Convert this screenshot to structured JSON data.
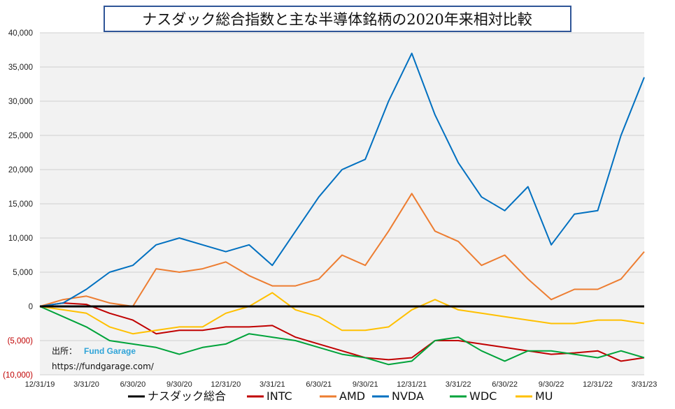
{
  "chart_data": {
    "type": "line",
    "title": "ナスダック総合指数と主な半導体銘柄の2020年来相対比較",
    "xlabel": "",
    "ylabel": "",
    "ylim": [
      -10000,
      40000
    ],
    "y_ticks": [
      40000,
      35000,
      30000,
      25000,
      20000,
      15000,
      10000,
      5000,
      0,
      -5000,
      -10000
    ],
    "y_tick_labels": [
      "40,000",
      "35,000",
      "30,000",
      "25,000",
      "20,000",
      "15,000",
      "10,000",
      "5,000",
      "0",
      "(5,000)",
      "(10,000)"
    ],
    "x_tick_labels": [
      "12/31/19",
      "3/31/20",
      "6/30/20",
      "9/30/20",
      "12/31/20",
      "3/31/21",
      "6/30/21",
      "9/30/21",
      "12/31/21",
      "3/31/22",
      "6/30/22",
      "9/30/22",
      "12/31/22",
      "3/31/23"
    ],
    "grid": "horizontal",
    "legend_position": "bottom",
    "x": [
      "12/31/19",
      "2/15/20",
      "3/31/20",
      "5/15/20",
      "6/30/20",
      "8/15/20",
      "9/30/20",
      "11/15/20",
      "12/31/20",
      "2/15/21",
      "3/31/21",
      "5/15/21",
      "6/30/21",
      "8/15/21",
      "9/30/21",
      "11/15/21",
      "12/31/21",
      "2/15/22",
      "3/31/22",
      "5/15/22",
      "6/30/22",
      "8/15/22",
      "9/30/22",
      "11/15/22",
      "12/31/22",
      "2/15/23",
      "3/31/23"
    ],
    "series": [
      {
        "name": "ナスダック総合",
        "color": "#000000",
        "values": [
          0,
          0,
          0,
          0,
          0,
          0,
          0,
          0,
          0,
          0,
          0,
          0,
          0,
          0,
          0,
          0,
          0,
          0,
          0,
          0,
          0,
          0,
          0,
          0,
          0,
          0,
          0
        ]
      },
      {
        "name": "INTC",
        "color": "#c00000",
        "values": [
          0,
          500,
          300,
          -1000,
          -2000,
          -4000,
          -3500,
          -3500,
          -3000,
          -3000,
          -2800,
          -4500,
          -5500,
          -6500,
          -7500,
          -7800,
          -7500,
          -5000,
          -5000,
          -5500,
          -6000,
          -6500,
          -7000,
          -6800,
          -6500,
          -8000,
          -7500
        ]
      },
      {
        "name": "AMD",
        "color": "#ed7d31",
        "values": [
          0,
          1000,
          1500,
          500,
          0,
          5500,
          5000,
          5500,
          6500,
          4500,
          3000,
          3000,
          4000,
          7500,
          6000,
          11000,
          16500,
          11000,
          9500,
          6000,
          7500,
          4000,
          1000,
          2500,
          2500,
          4000,
          8000
        ]
      },
      {
        "name": "NVDA",
        "color": "#0070c0",
        "values": [
          0,
          500,
          2500,
          5000,
          6000,
          9000,
          10000,
          9000,
          8000,
          9000,
          6000,
          11000,
          16000,
          20000,
          21500,
          30000,
          37000,
          28000,
          21000,
          16000,
          14000,
          17500,
          9000,
          13500,
          14000,
          25000,
          33500
        ]
      },
      {
        "name": "WDC",
        "color": "#00a33a",
        "values": [
          0,
          -1500,
          -3000,
          -5000,
          -5500,
          -6000,
          -7000,
          -6000,
          -5500,
          -4000,
          -4500,
          -5000,
          -6000,
          -7000,
          -7500,
          -8500,
          -8000,
          -5000,
          -4500,
          -6500,
          -8000,
          -6500,
          -6500,
          -7000,
          -7500,
          -6500,
          -7500
        ]
      },
      {
        "name": "MU",
        "color": "#ffc000",
        "values": [
          0,
          -500,
          -1000,
          -3000,
          -4000,
          -3500,
          -3000,
          -3000,
          -1000,
          0,
          2000,
          -500,
          -1500,
          -3500,
          -3500,
          -3000,
          -500,
          1000,
          -500,
          -1000,
          -1500,
          -2000,
          -2500,
          -2500,
          -2000,
          -2000,
          -2500
        ]
      }
    ],
    "source_label": "出所：",
    "source_brand": "Fund Garage",
    "source_url": "https://fundgarage.com/"
  }
}
